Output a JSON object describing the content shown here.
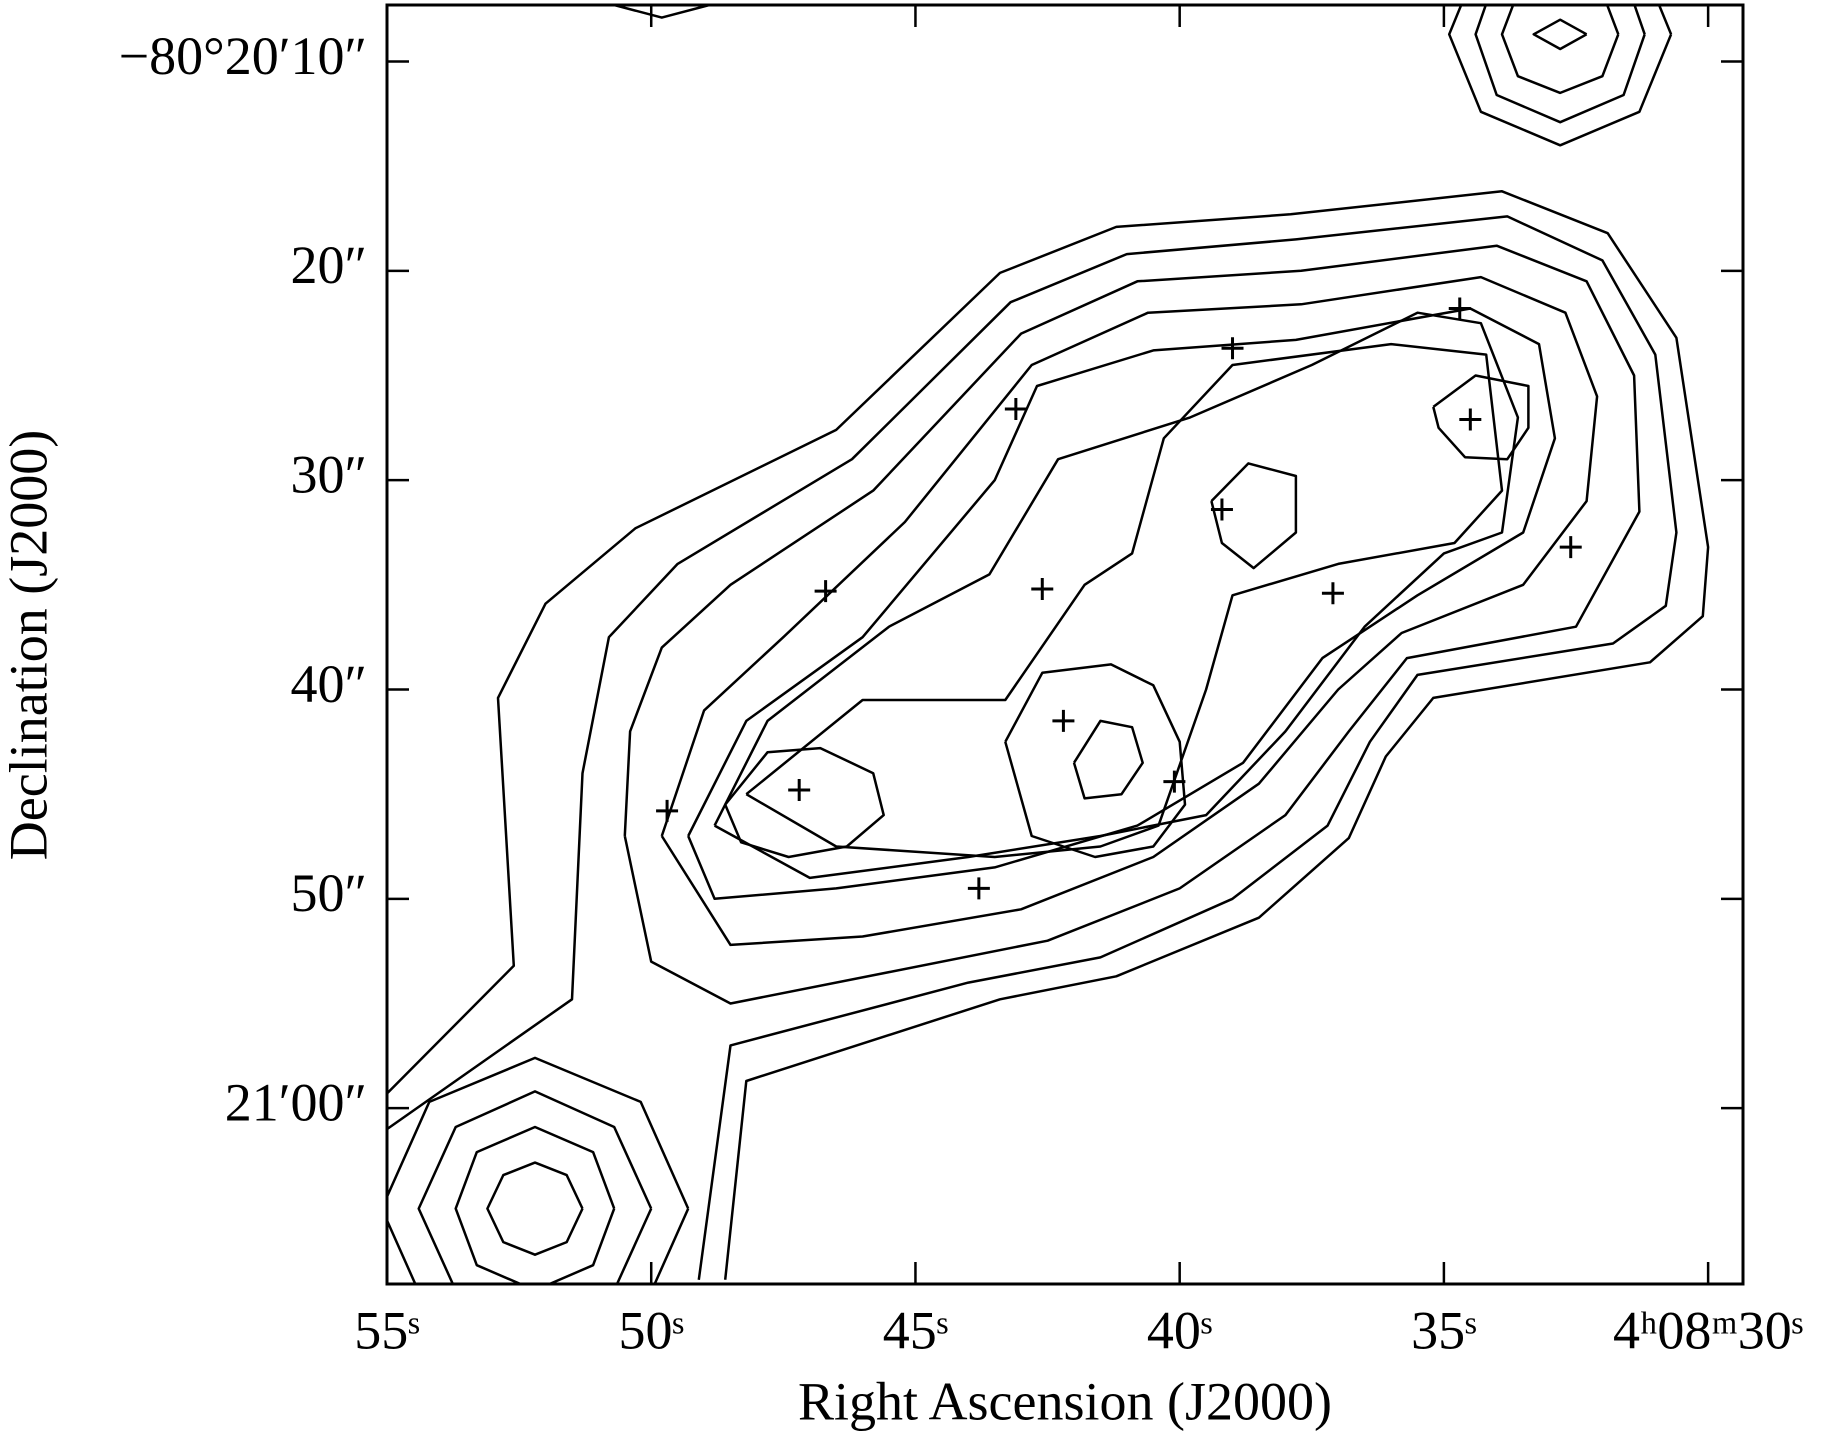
{
  "chart_data": {
    "type": "contour",
    "xlabel": "Right Ascension (J2000)",
    "ylabel": "Declination (J2000)",
    "color": "#000000",
    "xlim": [
      55,
      29.34
    ],
    "xticks": [
      {
        "value": 55,
        "label": "55ˢ"
      },
      {
        "value": 50,
        "label": "50ˢ"
      },
      {
        "value": 45,
        "label": "45ˢ"
      },
      {
        "value": 40,
        "label": "40ˢ"
      },
      {
        "value": 35,
        "label": "35ˢ"
      },
      {
        "value": 30,
        "label": "4ʰ08ᵐ30ˢ"
      }
    ],
    "ylim": [
      7.3,
      68.4
    ],
    "yticks": [
      {
        "value": 10,
        "label": "−80°20′10″"
      },
      {
        "value": 20,
        "label": "20″"
      },
      {
        "value": 30,
        "label": "30″"
      },
      {
        "value": 40,
        "label": "40″"
      },
      {
        "value": 50,
        "label": "50″"
      },
      {
        "value": 60,
        "label": "21′00″"
      }
    ],
    "series": [
      {
        "x": [
          55,
          52.6,
          52.9,
          52.0,
          50.3,
          46.5,
          43.4,
          41.2,
          37.9,
          33.9,
          31.9,
          30.6,
          30.0,
          30.1,
          31.1,
          35.2,
          36.1,
          36.8,
          38.5,
          41.2,
          43.4,
          48.2,
          48.6
        ],
        "y": [
          59.3,
          53.2,
          40.4,
          35.9,
          32.3,
          27.6,
          20.1,
          17.9,
          17.3,
          16.2,
          18.2,
          23.2,
          33.2,
          36.5,
          38.7,
          40.4,
          43.2,
          47.1,
          50.9,
          53.7,
          54.8,
          58.7,
          68.2
        ]
      },
      {
        "x": [
          55,
          51.5,
          51.3,
          50.8,
          49.5,
          46.2,
          43.2,
          41.0,
          37.8,
          33.8,
          32.0,
          31.0,
          30.6,
          30.8,
          31.8,
          35.5,
          36.4,
          37.2,
          39.0,
          41.5,
          44.0,
          48.5,
          49.1
        ],
        "y": [
          61.0,
          54.8,
          44.0,
          37.5,
          34.0,
          29.0,
          21.5,
          19.2,
          18.5,
          17.4,
          19.5,
          24.0,
          32.5,
          36.0,
          37.8,
          39.3,
          42.5,
          46.5,
          50.0,
          52.8,
          54.0,
          57.0,
          68.2
        ]
      },
      {
        "x": [
          50.5,
          50.4,
          49.8,
          48.5,
          45.8,
          43.0,
          40.8,
          37.7,
          34.0,
          32.3,
          31.4,
          31.3,
          32.5,
          35.7,
          36.8,
          38.0,
          40.0,
          42.5,
          45.5,
          48.5,
          50.0,
          50.5
        ],
        "y": [
          47.0,
          42.0,
          38.0,
          35.0,
          30.5,
          23.0,
          20.5,
          20.0,
          18.8,
          20.5,
          25.0,
          31.5,
          37.0,
          38.5,
          42.0,
          46.0,
          49.5,
          52.0,
          53.5,
          55.0,
          53.0,
          47.0
        ]
      },
      {
        "x": [
          49.8,
          49.0,
          47.5,
          45.2,
          42.8,
          40.6,
          37.7,
          34.3,
          32.7,
          32.1,
          32.3,
          33.5,
          35.8,
          37.0,
          38.5,
          40.5,
          43.0,
          46.0,
          48.5,
          49.8
        ],
        "y": [
          47.0,
          41.0,
          37.5,
          32.0,
          24.5,
          22.0,
          21.6,
          20.3,
          22.0,
          26.0,
          31.0,
          35.0,
          37.3,
          40.0,
          44.5,
          48.0,
          50.5,
          51.8,
          52.2,
          47.0
        ]
      },
      {
        "x": [
          49.3,
          48.2,
          46.0,
          43.5,
          42.7,
          40.5,
          37.8,
          34.5,
          33.2,
          32.9,
          33.5,
          35.5,
          37.3,
          38.8,
          40.8,
          43.5,
          46.5,
          48.8,
          49.3
        ],
        "y": [
          47.0,
          41.5,
          37.5,
          30.0,
          25.5,
          23.8,
          23.3,
          21.8,
          23.5,
          28.0,
          32.5,
          35.5,
          38.5,
          43.5,
          46.5,
          48.5,
          49.5,
          50.0,
          47.0
        ]
      },
      {
        "x": [
          48.8,
          47.8,
          45.5,
          43.6,
          42.3,
          39.8,
          37.5,
          35.5,
          34.3,
          33.6,
          33.9,
          35.0,
          36.5,
          38.0,
          39.5,
          41.5,
          44.0,
          47.0,
          48.8
        ],
        "y": [
          46.5,
          41.5,
          37.0,
          34.5,
          29.0,
          27.0,
          24.5,
          22.0,
          22.5,
          27.0,
          32.5,
          33.5,
          37.0,
          42.0,
          46.0,
          47.0,
          48.0,
          49.0,
          46.5
        ]
      },
      {
        "x": [
          48.2,
          46.0,
          43.3,
          41.8,
          40.9,
          40.3,
          39.0,
          36.0,
          34.2,
          33.9,
          34.8,
          37.0,
          39.0,
          39.5,
          40.4,
          41.5,
          43.5,
          46.5,
          48.2
        ],
        "y": [
          45.0,
          40.5,
          40.5,
          35.0,
          33.5,
          28.0,
          24.5,
          23.5,
          24.0,
          30.5,
          33.0,
          34.0,
          35.5,
          40.0,
          46.5,
          47.5,
          48.0,
          47.5,
          45.0
        ]
      },
      {
        "x": [
          48.6,
          47.8,
          46.8,
          45.8,
          45.6,
          46.3,
          47.4,
          48.3,
          48.6
        ],
        "y": [
          45.5,
          43.0,
          42.8,
          44.0,
          46.0,
          47.5,
          48.0,
          47.3,
          45.5
        ]
      },
      {
        "x": [
          43.3,
          42.6,
          41.3,
          40.5,
          40.0,
          39.9,
          40.5,
          41.6,
          42.8,
          43.3
        ],
        "y": [
          42.5,
          39.2,
          38.8,
          39.8,
          42.5,
          45.5,
          47.5,
          48.0,
          47.0,
          42.5
        ]
      },
      {
        "x": [
          42.0,
          41.5,
          40.9,
          40.7,
          41.1,
          41.8,
          42.0
        ],
        "y": [
          43.5,
          41.5,
          41.8,
          43.5,
          45.0,
          45.2,
          43.5
        ]
      },
      {
        "x": [
          39.4,
          38.7,
          37.8,
          37.8,
          38.6,
          39.2,
          39.4
        ],
        "y": [
          31.0,
          29.2,
          29.8,
          32.5,
          34.2,
          33.0,
          31.0
        ]
      },
      {
        "x": [
          35.2,
          34.4,
          33.4,
          33.4,
          33.8,
          34.6,
          35.1,
          35.2
        ],
        "y": [
          26.5,
          25.0,
          25.5,
          27.5,
          29.0,
          28.9,
          27.5,
          26.5
        ]
      },
      {
        "x": [
          51.3,
          51.6,
          52.2,
          52.8,
          53.1,
          52.8,
          52.2,
          51.6,
          51.3
        ],
        "y": [
          64.8,
          63.2,
          62.6,
          63.2,
          64.8,
          66.4,
          67.0,
          66.4,
          64.8
        ]
      },
      {
        "x": [
          50.7,
          51.1,
          52.2,
          53.3,
          53.7,
          53.3,
          52.2,
          51.1,
          50.7
        ],
        "y": [
          64.8,
          62.1,
          60.9,
          62.1,
          64.8,
          67.5,
          68.7,
          67.5,
          64.8
        ]
      },
      {
        "x": [
          50.0,
          50.7,
          52.2,
          53.7,
          54.4,
          53.7,
          52.2,
          50.7,
          50.0
        ],
        "y": [
          64.8,
          60.9,
          59.2,
          60.9,
          64.8,
          68.7,
          70.4,
          68.7,
          64.8
        ]
      },
      {
        "x": [
          49.3,
          50.2,
          52.2,
          54.2,
          55.1,
          54.2,
          52.2,
          50.2,
          49.3
        ],
        "y": [
          64.8,
          59.7,
          57.6,
          59.7,
          64.8,
          69.9,
          72.0,
          69.9,
          64.8
        ]
      },
      {
        "x": [
          32.3,
          32.8,
          33.3,
          32.8,
          32.3
        ],
        "y": [
          8.7,
          8.0,
          8.7,
          9.4,
          8.7
        ]
      },
      {
        "x": [
          31.7,
          32.0,
          32.8,
          33.6,
          33.9,
          33.6,
          32.8,
          32.0,
          31.7
        ],
        "y": [
          8.7,
          10.7,
          11.5,
          10.7,
          8.7,
          6.7,
          5.9,
          6.7,
          8.7
        ]
      },
      {
        "x": [
          31.2,
          31.6,
          32.8,
          34.0,
          34.4,
          34.0,
          32.8,
          31.6,
          31.2
        ],
        "y": [
          8.7,
          11.6,
          12.9,
          11.6,
          8.7,
          5.8,
          4.5,
          5.8,
          8.7
        ]
      },
      {
        "x": [
          30.7,
          31.3,
          32.8,
          34.3,
          34.9,
          34.3,
          32.8,
          31.3,
          30.7
        ],
        "y": [
          8.7,
          12.4,
          14.0,
          12.4,
          8.7,
          5.0,
          3.4,
          5.0,
          8.7
        ]
      },
      {
        "x": [
          48.9,
          49.8,
          50.7
        ],
        "y": [
          7.3,
          7.9,
          7.3
        ]
      }
    ],
    "points": {
      "x": [
        34.7,
        39.0,
        43.1,
        34.5,
        39.2,
        32.6,
        46.7,
        42.6,
        37.1,
        42.2,
        40.1,
        47.2,
        49.7,
        43.8
      ],
      "y": [
        21.8,
        23.7,
        26.6,
        27.1,
        31.4,
        33.2,
        35.3,
        35.2,
        35.4,
        41.5,
        44.4,
        44.8,
        45.8,
        49.5
      ]
    }
  }
}
